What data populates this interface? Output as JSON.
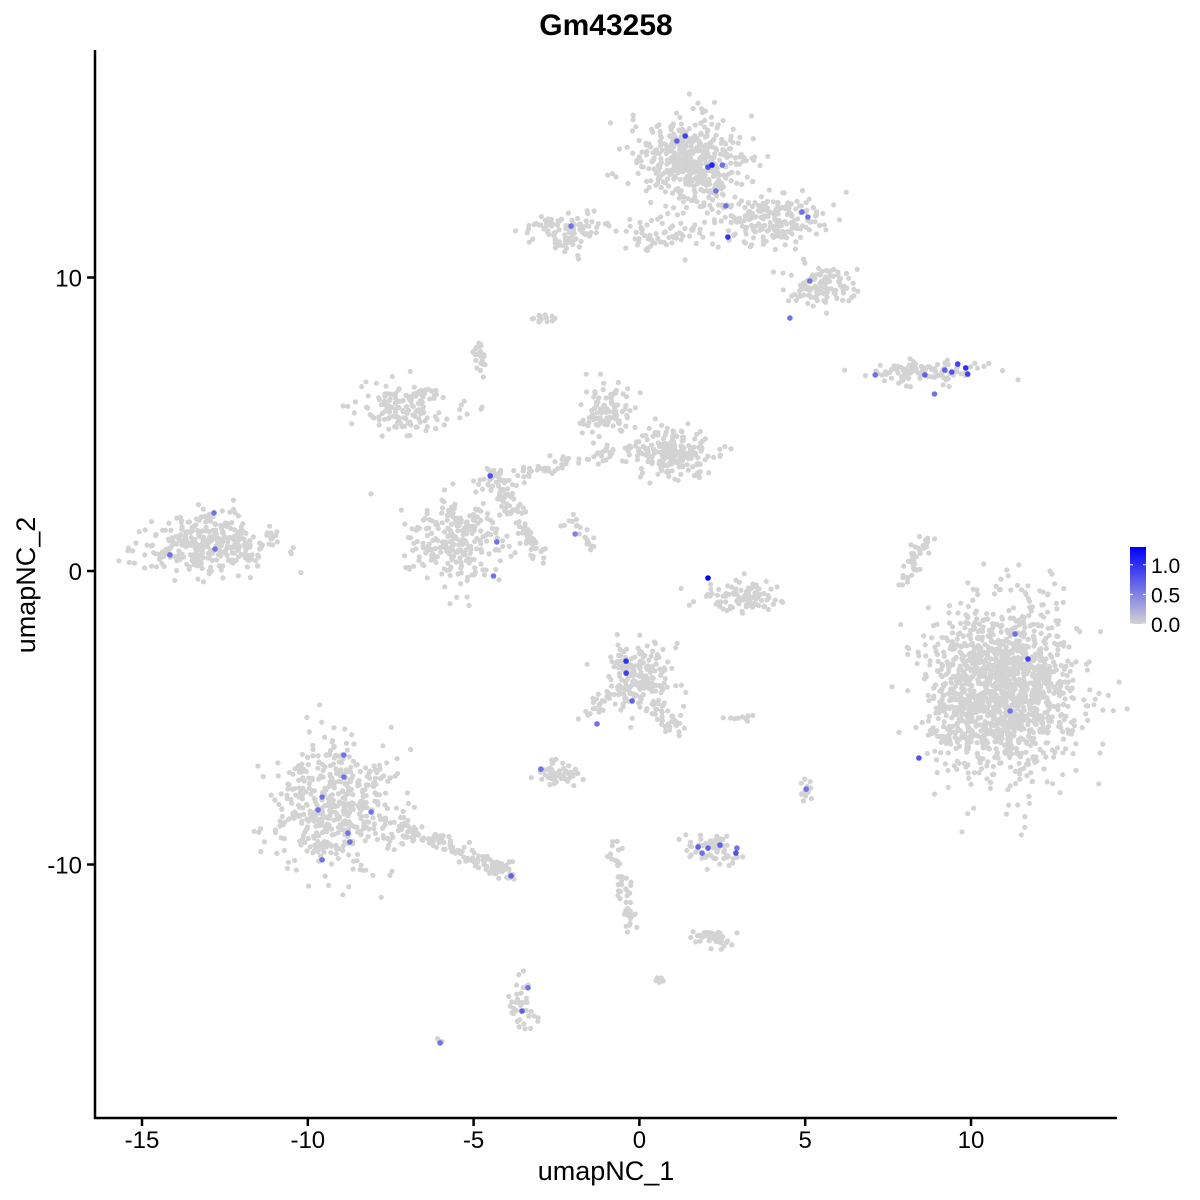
{
  "chart_data": {
    "type": "scatter",
    "title": "Gm43258",
    "xlabel": "umapNC_1",
    "ylabel": "umapNC_2",
    "xlim": [
      -16.5,
      14.2
    ],
    "ylim": [
      -18.5,
      17.8
    ],
    "x_ticks": [
      -15,
      -10,
      -5,
      0,
      5,
      10
    ],
    "x_tick_labels": [
      "-15",
      "-10",
      "-5",
      "0",
      "5",
      "10"
    ],
    "y_ticks": [
      -10,
      0,
      10
    ],
    "y_tick_labels": [
      "-10",
      "0",
      "10"
    ],
    "grid": false,
    "legend": {
      "position": "right",
      "type": "colorbar",
      "range": [
        0,
        1.3
      ],
      "ticks": [
        0.0,
        0.5,
        1.0
      ],
      "tick_labels": [
        "0.0",
        "0.5",
        "1.0"
      ],
      "low_color": "#d3d3d3",
      "high_color": "#0000ff"
    },
    "background_clusters": [
      {
        "center": [
          -13.1,
          0.9
        ],
        "sd": [
          1.0,
          0.5
        ],
        "n": 350
      },
      {
        "center": [
          1.6,
          13.9
        ],
        "sd": [
          0.8,
          0.8
        ],
        "n": 500
      },
      {
        "center": [
          3.8,
          12.0
        ],
        "sd": [
          0.9,
          0.5
        ],
        "n": 200
      },
      {
        "center": [
          5.5,
          9.7
        ],
        "sd": [
          0.5,
          0.35
        ],
        "n": 120
      },
      {
        "center": [
          0.8,
          11.5
        ],
        "sd": [
          0.8,
          0.3
        ],
        "n": 60
      },
      {
        "center": [
          -2.2,
          11.6
        ],
        "sd": [
          0.6,
          0.3
        ],
        "n": 100
      },
      {
        "center": [
          8.8,
          6.8
        ],
        "sd": [
          0.9,
          0.2
        ],
        "n": 100
      },
      {
        "center": [
          10.9,
          -4.1
        ],
        "sd": [
          1.1,
          1.4
        ],
        "n": 1500
      },
      {
        "center": [
          -9.2,
          -8.0
        ],
        "sd": [
          0.9,
          1.1
        ],
        "n": 500
      },
      {
        "center": [
          -5.5,
          1.0
        ],
        "sd": [
          0.8,
          0.7
        ],
        "n": 250
      },
      {
        "center": [
          -7.0,
          5.5
        ],
        "sd": [
          0.8,
          0.4
        ],
        "n": 150
      },
      {
        "center": [
          0.9,
          4.0
        ],
        "sd": [
          0.6,
          0.4
        ],
        "n": 200
      },
      {
        "center": [
          -1.0,
          5.4
        ],
        "sd": [
          0.4,
          0.5
        ],
        "n": 100
      },
      {
        "center": [
          -4.8,
          7.3
        ],
        "sd": [
          0.1,
          0.3
        ],
        "n": 25
      },
      {
        "center": [
          -2.8,
          8.6
        ],
        "sd": [
          0.2,
          0.1
        ],
        "n": 15
      },
      {
        "center": [
          0.0,
          -3.6
        ],
        "sd": [
          0.5,
          0.6
        ],
        "n": 200
      },
      {
        "center": [
          -2.5,
          -6.9
        ],
        "sd": [
          0.3,
          0.2
        ],
        "n": 60
      },
      {
        "center": [
          2.2,
          -9.5
        ],
        "sd": [
          0.4,
          0.25
        ],
        "n": 60
      },
      {
        "center": [
          2.2,
          -12.5
        ],
        "sd": [
          0.3,
          0.15
        ],
        "n": 40
      },
      {
        "center": [
          3.2,
          -0.9
        ],
        "sd": [
          0.6,
          0.3
        ],
        "n": 100
      },
      {
        "center": [
          -3.5,
          -14.8
        ],
        "sd": [
          0.2,
          0.5
        ],
        "n": 40
      },
      {
        "center": [
          5.0,
          -7.4
        ],
        "sd": [
          0.1,
          0.2
        ],
        "n": 15
      },
      {
        "center": [
          -6.0,
          -16.0
        ],
        "sd": [
          0.05,
          0.05
        ],
        "n": 4
      },
      {
        "center": [
          0.6,
          -13.9
        ],
        "sd": [
          0.1,
          0.05
        ],
        "n": 6
      },
      {
        "center": [
          3.1,
          -5.0
        ],
        "sd": [
          0.3,
          0.1
        ],
        "n": 10
      }
    ],
    "background_trails": [
      {
        "from": [
          -7.5,
          -8.5
        ],
        "to": [
          -3.8,
          -10.4
        ],
        "n": 150
      },
      {
        "from": [
          -4.5,
          3.5
        ],
        "to": [
          -3.0,
          0.5
        ],
        "n": 100
      },
      {
        "from": [
          -5.0,
          3.0
        ],
        "to": [
          0.0,
          4.2
        ],
        "n": 80
      },
      {
        "from": [
          0.5,
          -4.5
        ],
        "to": [
          1.2,
          -5.5
        ],
        "n": 30
      },
      {
        "from": [
          8.0,
          -0.5
        ],
        "to": [
          8.7,
          1.2
        ],
        "n": 40
      },
      {
        "from": [
          -2.3,
          1.8
        ],
        "to": [
          -1.3,
          0.8
        ],
        "n": 20
      },
      {
        "from": [
          -0.8,
          -9.2
        ],
        "to": [
          -0.2,
          -12.2
        ],
        "n": 50
      },
      {
        "from": [
          -1.8,
          -5.0
        ],
        "to": [
          -0.8,
          -4.2
        ],
        "n": 20
      }
    ],
    "expressing_cells": [
      {
        "x": 1.38,
        "y": 14.82,
        "v": 0.9
      },
      {
        "x": 1.13,
        "y": 14.65,
        "v": 0.7
      },
      {
        "x": 2.07,
        "y": 13.76,
        "v": 0.8
      },
      {
        "x": 2.19,
        "y": 13.83,
        "v": 1.1
      },
      {
        "x": 2.5,
        "y": 13.83,
        "v": 0.6
      },
      {
        "x": 2.31,
        "y": 12.95,
        "v": 0.6
      },
      {
        "x": 2.61,
        "y": 12.44,
        "v": 0.6
      },
      {
        "x": 2.67,
        "y": 11.38,
        "v": 1.0
      },
      {
        "x": 4.9,
        "y": 12.23,
        "v": 0.6
      },
      {
        "x": 5.08,
        "y": 12.06,
        "v": 0.6
      },
      {
        "x": -2.06,
        "y": 11.75,
        "v": 0.6
      },
      {
        "x": 5.14,
        "y": 9.88,
        "v": 0.6
      },
      {
        "x": 4.54,
        "y": 8.62,
        "v": 0.6
      },
      {
        "x": 7.11,
        "y": 6.68,
        "v": 0.6
      },
      {
        "x": 8.61,
        "y": 6.68,
        "v": 0.7
      },
      {
        "x": 9.21,
        "y": 6.85,
        "v": 0.7
      },
      {
        "x": 9.6,
        "y": 7.05,
        "v": 0.9
      },
      {
        "x": 9.42,
        "y": 6.78,
        "v": 0.8
      },
      {
        "x": 9.84,
        "y": 6.92,
        "v": 1.0
      },
      {
        "x": 9.9,
        "y": 6.71,
        "v": 0.9
      },
      {
        "x": 8.9,
        "y": 6.03,
        "v": 0.6
      },
      {
        "x": -4.5,
        "y": 3.24,
        "v": 0.8
      },
      {
        "x": -4.3,
        "y": 0.99,
        "v": 0.6
      },
      {
        "x": -4.4,
        "y": -0.17,
        "v": 0.6
      },
      {
        "x": -1.94,
        "y": 1.26,
        "v": 0.5
      },
      {
        "x": -12.83,
        "y": 1.98,
        "v": 0.6
      },
      {
        "x": -12.8,
        "y": 0.75,
        "v": 0.6
      },
      {
        "x": -14.16,
        "y": 0.55,
        "v": 0.6
      },
      {
        "x": 2.07,
        "y": -0.24,
        "v": 1.3
      },
      {
        "x": 11.33,
        "y": -2.15,
        "v": 0.6
      },
      {
        "x": 11.72,
        "y": -3.0,
        "v": 0.9
      },
      {
        "x": 11.18,
        "y": -4.77,
        "v": 0.6
      },
      {
        "x": 8.43,
        "y": -6.37,
        "v": 0.8
      },
      {
        "x": -0.4,
        "y": -3.07,
        "v": 1.0
      },
      {
        "x": -0.4,
        "y": -3.48,
        "v": 0.9
      },
      {
        "x": -0.22,
        "y": -4.43,
        "v": 0.7
      },
      {
        "x": -1.28,
        "y": -5.21,
        "v": 0.6
      },
      {
        "x": -2.97,
        "y": -6.75,
        "v": 0.6
      },
      {
        "x": 5.03,
        "y": -7.43,
        "v": 0.6
      },
      {
        "x": -8.91,
        "y": -6.27,
        "v": 0.6
      },
      {
        "x": -8.91,
        "y": -7.02,
        "v": 0.6
      },
      {
        "x": -9.57,
        "y": -7.7,
        "v": 0.6
      },
      {
        "x": -9.69,
        "y": -8.14,
        "v": 0.6
      },
      {
        "x": -8.09,
        "y": -8.21,
        "v": 0.6
      },
      {
        "x": -8.79,
        "y": -8.93,
        "v": 0.6
      },
      {
        "x": -8.73,
        "y": -9.23,
        "v": 0.6
      },
      {
        "x": -9.57,
        "y": -9.84,
        "v": 0.6
      },
      {
        "x": -3.87,
        "y": -10.39,
        "v": 0.7
      },
      {
        "x": 1.77,
        "y": -9.4,
        "v": 0.7
      },
      {
        "x": 2.07,
        "y": -9.44,
        "v": 0.7
      },
      {
        "x": 1.89,
        "y": -9.61,
        "v": 0.6
      },
      {
        "x": 2.43,
        "y": -9.34,
        "v": 0.7
      },
      {
        "x": 2.91,
        "y": -9.61,
        "v": 0.8
      },
      {
        "x": 2.94,
        "y": -9.44,
        "v": 0.6
      },
      {
        "x": -3.36,
        "y": -14.2,
        "v": 0.6
      },
      {
        "x": -3.54,
        "y": -14.99,
        "v": 0.7
      },
      {
        "x": -6.01,
        "y": -16.08,
        "v": 0.6
      }
    ]
  }
}
